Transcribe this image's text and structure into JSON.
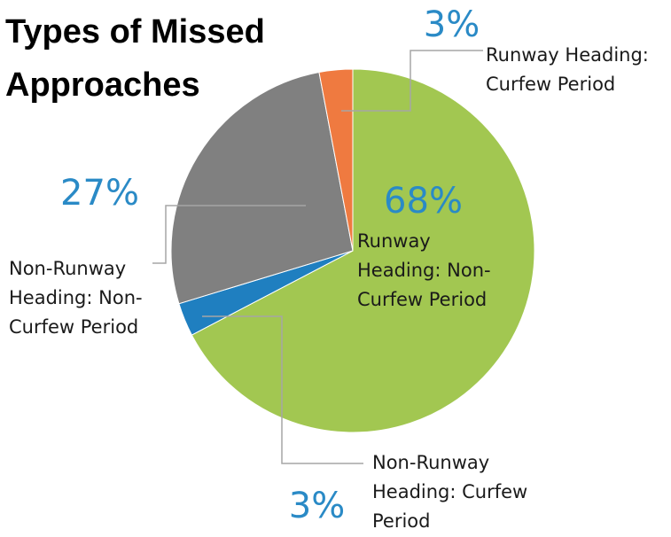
{
  "chart_data": {
    "type": "pie",
    "title": "Types of Missed Approaches",
    "categories": [
      "Runway Heading: Non-Curfew Period",
      "Non-Runway Heading: Curfew Period",
      "Non-Runway Heading: Non-Curfew Period",
      "Runway Heading: Curfew Period"
    ],
    "values": [
      68,
      3,
      27,
      3
    ],
    "value_labels": [
      "68%",
      "3%",
      "27%",
      "3%"
    ],
    "colors": [
      "#a2c751",
      "#1f7fc0",
      "#808080",
      "#ef7a40"
    ]
  }
}
